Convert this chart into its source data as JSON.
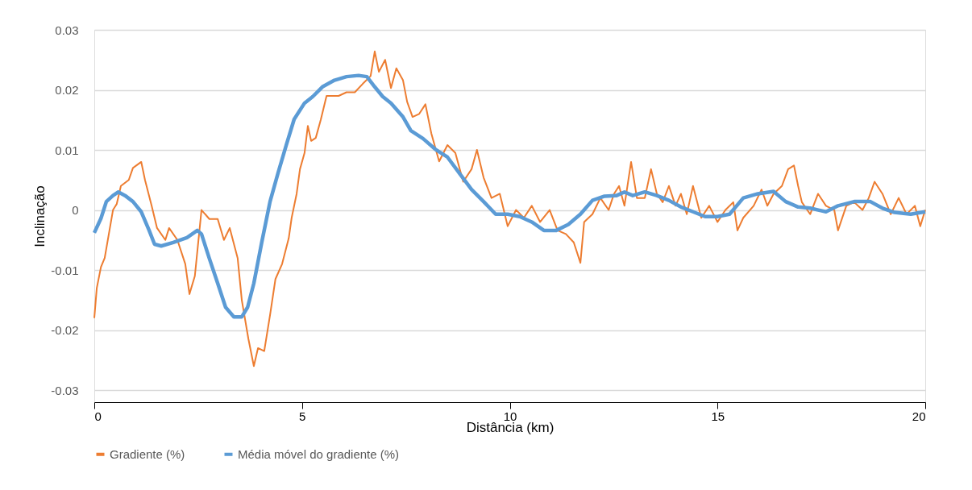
{
  "chart_data": {
    "type": "line",
    "xlabel": "Distância (km)",
    "ylabel": "Inclinação",
    "xlim": [
      0,
      20
    ],
    "xticks": [
      0,
      5,
      10,
      15,
      20
    ],
    "ylim": [
      -0.032,
      0.03
    ],
    "yticks": [
      -0.03,
      -0.02,
      -0.01,
      0,
      0.01,
      0.02,
      0.03
    ],
    "grid": "y",
    "legend": "bottom",
    "line_style": "solid",
    "marker": "none",
    "series": [
      {
        "name": "Gradiente (%)",
        "color": "#ed7d31",
        "x": [
          0.0,
          0.06,
          0.16,
          0.25,
          0.35,
          0.45,
          0.54,
          0.64,
          0.83,
          0.93,
          1.13,
          1.22,
          1.38,
          1.51,
          1.71,
          1.8,
          2.0,
          2.19,
          2.29,
          2.42,
          2.58,
          2.77,
          2.97,
          3.12,
          3.26,
          3.45,
          3.55,
          3.71,
          3.84,
          3.94,
          4.09,
          4.23,
          4.36,
          4.52,
          4.68,
          4.75,
          4.87,
          4.95,
          5.06,
          5.14,
          5.22,
          5.33,
          5.45,
          5.59,
          5.88,
          6.07,
          6.27,
          6.46,
          6.65,
          6.75,
          6.85,
          7.0,
          7.14,
          7.27,
          7.43,
          7.53,
          7.66,
          7.82,
          7.97,
          8.11,
          8.3,
          8.5,
          8.69,
          8.88,
          9.08,
          9.21,
          9.37,
          9.56,
          9.76,
          9.95,
          10.15,
          10.34,
          10.53,
          10.73,
          10.96,
          11.15,
          11.35,
          11.54,
          11.7,
          11.79,
          11.99,
          12.18,
          12.38,
          12.51,
          12.63,
          12.76,
          12.92,
          13.06,
          13.25,
          13.4,
          13.54,
          13.68,
          13.83,
          13.99,
          14.12,
          14.26,
          14.41,
          14.61,
          14.8,
          15.0,
          15.19,
          15.38,
          15.48,
          15.62,
          15.87,
          16.06,
          16.2,
          16.35,
          16.55,
          16.7,
          16.84,
          16.94,
          17.03,
          17.23,
          17.42,
          17.61,
          17.81,
          17.9,
          18.1,
          18.29,
          18.49,
          18.64,
          18.78,
          18.97,
          19.17,
          19.36,
          19.55,
          19.75,
          19.88,
          20.0
        ],
        "values": [
          -0.018,
          -0.013,
          -0.0095,
          -0.008,
          -0.004,
          0,
          0.001,
          0.004,
          0.005,
          0.007,
          0.008,
          0.005,
          0.0007,
          -0.003,
          -0.005,
          -0.003,
          -0.005,
          -0.009,
          -0.014,
          -0.011,
          0,
          -0.0015,
          -0.0015,
          -0.005,
          -0.003,
          -0.008,
          -0.015,
          -0.0215,
          -0.026,
          -0.023,
          -0.0235,
          -0.0175,
          -0.0115,
          -0.009,
          -0.0047,
          -0.0013,
          0.0027,
          0.0068,
          0.0095,
          0.014,
          0.0115,
          0.012,
          0.015,
          0.019,
          0.019,
          0.0196,
          0.0196,
          0.021,
          0.0223,
          0.0264,
          0.023,
          0.025,
          0.0203,
          0.0236,
          0.0216,
          0.018,
          0.0155,
          0.016,
          0.0176,
          0.0128,
          0.0081,
          0.0108,
          0.0095,
          0.0047,
          0.0068,
          0.01,
          0.0054,
          0.002,
          0.0027,
          -0.0027,
          0,
          -0.0013,
          0.0007,
          -0.002,
          0,
          -0.0034,
          -0.004,
          -0.0054,
          -0.0088,
          -0.002,
          -0.0007,
          0.002,
          0,
          0.0027,
          0.004,
          0.0007,
          0.008,
          0.002,
          0.002,
          0.0068,
          0.0027,
          0.0013,
          0.004,
          0.0007,
          0.0027,
          -0.0007,
          0.004,
          -0.0013,
          0.0007,
          -0.002,
          0,
          0.0013,
          -0.0034,
          -0.0013,
          0.0007,
          0.0034,
          0.0007,
          0.0027,
          0.004,
          0.0068,
          0.0074,
          0.004,
          0.0013,
          -0.0007,
          0.0027,
          0.0007,
          0,
          -0.0034,
          0.0007,
          0.0013,
          0,
          0.002,
          0.0047,
          0.0027,
          -0.0007,
          0.002,
          -0.0007,
          0.0007,
          -0.0027,
          0
        ]
      },
      {
        "name": "Média móvel do gradiente (%)",
        "color": "#5b9bd5",
        "x": [
          0,
          0.16,
          0.29,
          0.45,
          0.58,
          0.74,
          0.93,
          1.13,
          1.32,
          1.45,
          1.61,
          1.9,
          2.23,
          2.48,
          2.58,
          2.77,
          2.97,
          3.16,
          3.36,
          3.55,
          3.69,
          3.84,
          4.03,
          4.23,
          4.42,
          4.62,
          4.81,
          5.06,
          5.26,
          5.49,
          5.78,
          6.07,
          6.36,
          6.56,
          6.75,
          6.94,
          7.14,
          7.43,
          7.62,
          7.91,
          8.21,
          8.5,
          8.79,
          9.08,
          9.37,
          9.66,
          9.95,
          10.24,
          10.53,
          10.82,
          11.12,
          11.41,
          11.7,
          11.99,
          12.28,
          12.57,
          12.76,
          12.96,
          13.25,
          13.54,
          13.83,
          14.12,
          14.41,
          14.7,
          15.0,
          15.29,
          15.62,
          15.97,
          16.35,
          16.64,
          16.94,
          17.23,
          17.61,
          17.9,
          18.29,
          18.68,
          18.97,
          19.26,
          19.65,
          20.0
        ],
        "values": [
          -0.0038,
          -0.0014,
          0.0014,
          0.0024,
          0.003,
          0.0024,
          0.0014,
          -0.0003,
          -0.0034,
          -0.0057,
          -0.006,
          -0.0054,
          -0.0046,
          -0.0034,
          -0.004,
          -0.0081,
          -0.0122,
          -0.0162,
          -0.0178,
          -0.0178,
          -0.0162,
          -0.0122,
          -0.0054,
          0.0014,
          0.0061,
          0.0108,
          0.0151,
          0.0178,
          0.0189,
          0.0205,
          0.0216,
          0.0222,
          0.0224,
          0.0222,
          0.0205,
          0.0189,
          0.0178,
          0.0155,
          0.0132,
          0.0119,
          0.0101,
          0.0088,
          0.0061,
          0.0034,
          0.0014,
          -0.0007,
          -0.0007,
          -0.0011,
          -0.002,
          -0.0034,
          -0.0034,
          -0.0024,
          -0.0007,
          0.0016,
          0.0023,
          0.0024,
          0.003,
          0.0024,
          0.003,
          0.0024,
          0.0016,
          0.0005,
          -0.0003,
          -0.0011,
          -0.0011,
          -0.0007,
          0.002,
          0.0027,
          0.0031,
          0.0014,
          0.0005,
          0.0003,
          -0.0003,
          0.0007,
          0.0014,
          0.0014,
          0.0003,
          -0.0004,
          -0.0007,
          -0.0003
        ]
      }
    ]
  }
}
